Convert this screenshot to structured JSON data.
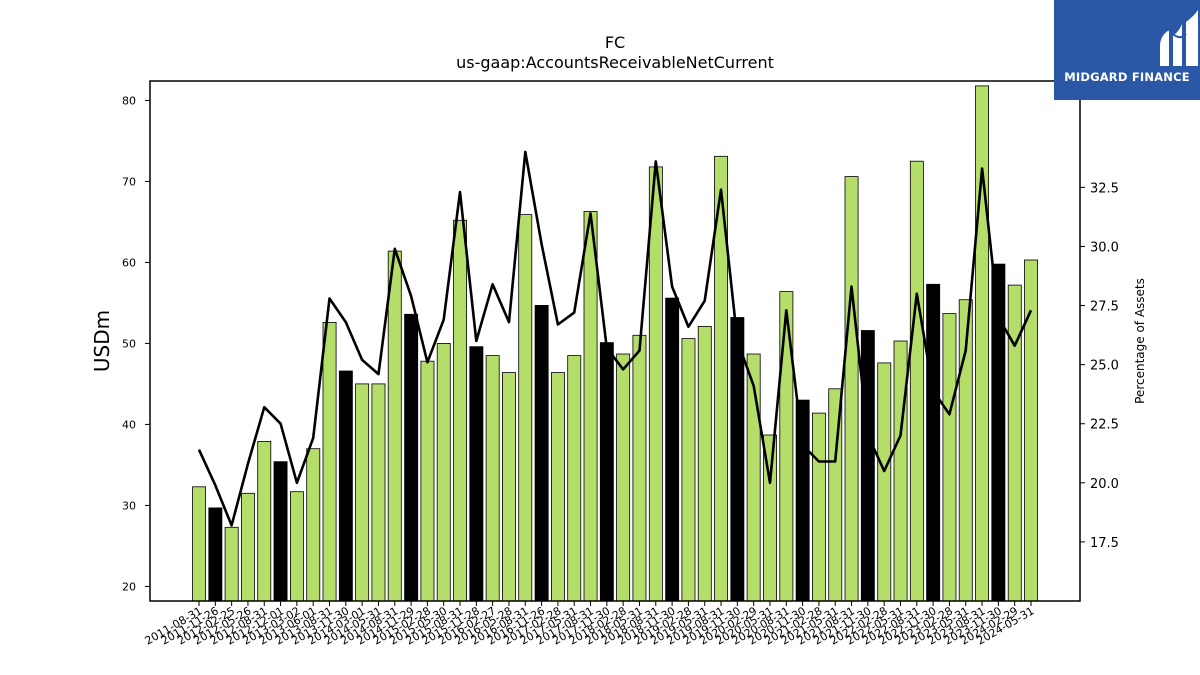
{
  "brand": {
    "name": "MIDGARD FINANCE",
    "bg_color": "#2a57a6",
    "icon": "midgard-logo-icon"
  },
  "chart_data": {
    "type": "bar",
    "title": "FC",
    "subtitle": "us-gaap:AccountsReceivableNetCurrent",
    "ylabel": "USDm",
    "y2label": "Percentage of Assets",
    "ylim": [
      18.2,
      82.4
    ],
    "y2lim": [
      15.0,
      37.0
    ],
    "yticks": [
      20,
      30,
      40,
      50,
      60,
      70,
      80
    ],
    "y2ticks": [
      17.5,
      20.0,
      22.5,
      25.0,
      27.5,
      30.0,
      32.5
    ],
    "colors": {
      "bar_green": "#b5dd6a",
      "bar_black": "#000000",
      "line": "#000000"
    },
    "grid": false,
    "categories": [
      "2011-08-31",
      "2011-11-26",
      "2012-02-25",
      "2012-05-26",
      "2012-08-31",
      "2012-12-01",
      "2013-03-02",
      "2013-06-01",
      "2013-08-31",
      "2013-11-30",
      "2014-03-01",
      "2014-05-31",
      "2014-08-31",
      "2014-11-29",
      "2015-02-28",
      "2015-05-30",
      "2015-08-31",
      "2015-11-28",
      "2016-02-27",
      "2016-05-28",
      "2016-08-31",
      "2016-11-26",
      "2017-02-28",
      "2017-05-31",
      "2017-08-31",
      "2017-11-30",
      "2018-02-28",
      "2018-05-31",
      "2018-08-31",
      "2018-11-30",
      "2019-02-28",
      "2019-05-31",
      "2019-08-31",
      "2019-11-30",
      "2020-02-29",
      "2020-05-31",
      "2020-08-31",
      "2020-11-30",
      "2021-02-28",
      "2021-05-31",
      "2021-08-31",
      "2021-11-30",
      "2022-02-28",
      "2022-05-31",
      "2022-08-31",
      "2022-11-30",
      "2023-02-28",
      "2023-05-31",
      "2023-08-31",
      "2023-11-30",
      "2024-02-29",
      "2024-05-31"
    ],
    "values": [
      32.3,
      29.7,
      27.3,
      31.5,
      37.9,
      35.4,
      31.7,
      37.0,
      52.6,
      46.6,
      45.0,
      45.0,
      61.4,
      53.6,
      47.8,
      50.0,
      65.2,
      49.6,
      48.5,
      46.4,
      65.9,
      54.7,
      46.4,
      48.5,
      66.3,
      50.1,
      48.7,
      51.0,
      71.8,
      55.6,
      50.6,
      52.1,
      73.1,
      53.2,
      48.7,
      38.7,
      56.4,
      43.0,
      41.4,
      44.4,
      70.6,
      51.6,
      47.6,
      50.3,
      72.5,
      57.3,
      53.7,
      55.4,
      81.8,
      59.8,
      57.2,
      60.3
    ],
    "bar_color_key": [
      "g",
      "k",
      "g",
      "g",
      "g",
      "k",
      "g",
      "g",
      "g",
      "k",
      "g",
      "g",
      "g",
      "k",
      "g",
      "g",
      "g",
      "k",
      "g",
      "g",
      "g",
      "k",
      "g",
      "g",
      "g",
      "k",
      "g",
      "g",
      "g",
      "k",
      "g",
      "g",
      "g",
      "k",
      "g",
      "g",
      "g",
      "k",
      "g",
      "g",
      "g",
      "k",
      "g",
      "g",
      "g",
      "k",
      "g",
      "g",
      "g",
      "k",
      "g",
      "g"
    ],
    "line_series": {
      "name": "Percentage of Assets",
      "values": [
        21.4,
        19.9,
        18.2,
        20.8,
        23.2,
        22.5,
        20.0,
        21.9,
        27.8,
        26.8,
        25.2,
        24.6,
        29.9,
        27.9,
        25.1,
        26.9,
        32.3,
        26.0,
        28.4,
        26.8,
        34.0,
        30.1,
        26.7,
        27.2,
        31.4,
        25.7,
        24.8,
        25.6,
        33.6,
        28.3,
        26.6,
        27.7,
        32.4,
        26.0,
        24.1,
        20.0,
        27.3,
        21.6,
        20.9,
        20.9,
        28.3,
        22.0,
        20.5,
        22.0,
        28.0,
        23.9,
        22.9,
        25.6,
        33.3,
        27.0,
        25.8,
        27.3
      ]
    }
  }
}
